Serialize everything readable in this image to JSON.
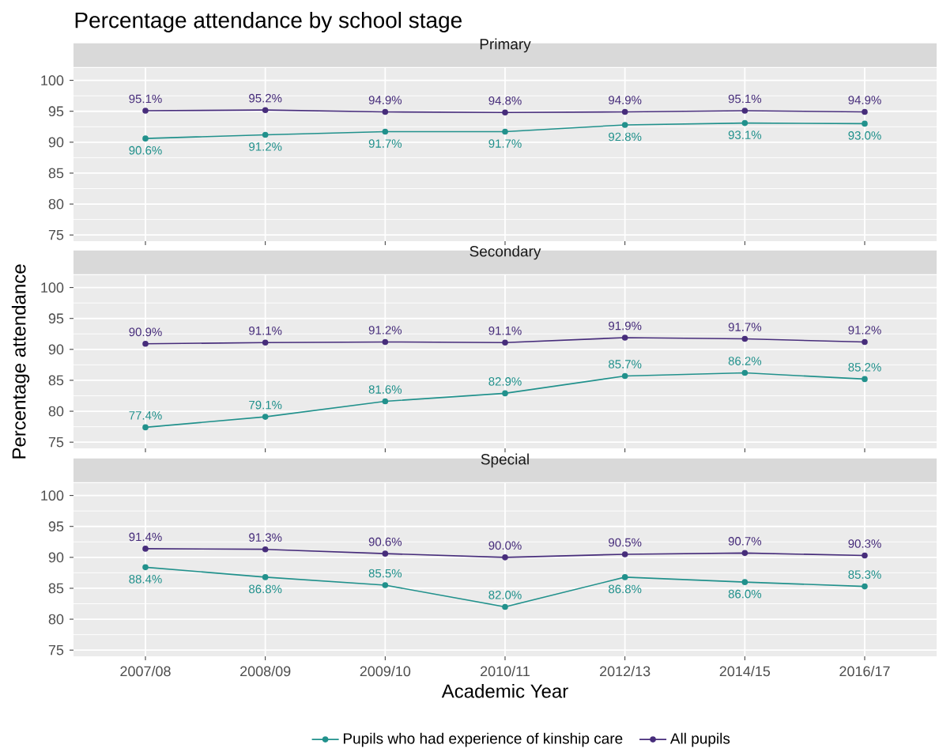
{
  "chart_data": [
    {
      "type": "line",
      "title": "Percentage attendance by school stage",
      "subtitle": "Primary",
      "categories": [
        "2007/08",
        "2008/09",
        "2009/10",
        "2010/11",
        "2012/13",
        "2014/15",
        "2016/17"
      ],
      "ylim": [
        74,
        102
      ],
      "yticks": [
        75,
        80,
        85,
        90,
        95,
        100
      ],
      "grid": true,
      "marker": "circle",
      "line_style": "solid",
      "tick_labels": "y",
      "series": [
        {
          "color": "#21918c",
          "values": [
            90.6,
            91.2,
            91.7,
            91.7,
            92.8,
            93.1,
            93.0
          ],
          "value_labels": [
            "90.6%",
            "91.2%",
            "91.7%",
            "91.7%",
            "92.8%",
            "93.1%",
            "93.0%"
          ]
        },
        {
          "color": "#472d7b",
          "values": [
            95.1,
            95.2,
            94.9,
            94.8,
            94.9,
            95.1,
            94.9
          ],
          "value_labels": [
            "95.1%",
            "95.2%",
            "94.9%",
            "94.8%",
            "94.9%",
            "95.1%",
            "94.9%"
          ]
        }
      ]
    },
    {
      "type": "line",
      "subtitle": "Secondary",
      "ylabel": "Percentage attendance",
      "categories": [
        "2007/08",
        "2008/09",
        "2009/10",
        "2010/11",
        "2012/13",
        "2014/15",
        "2016/17"
      ],
      "ylim": [
        74,
        102
      ],
      "yticks": [
        75,
        80,
        85,
        90,
        95,
        100
      ],
      "grid": true,
      "marker": "circle",
      "line_style": "solid",
      "tick_labels": "y",
      "series": [
        {
          "color": "#21918c",
          "values": [
            77.4,
            79.1,
            81.6,
            82.9,
            85.7,
            86.2,
            85.2
          ],
          "value_labels": [
            "77.4%",
            "79.1%",
            "81.6%",
            "82.9%",
            "85.7%",
            "86.2%",
            "85.2%"
          ]
        },
        {
          "color": "#472d7b",
          "values": [
            90.9,
            91.1,
            91.2,
            91.1,
            91.9,
            91.7,
            91.2
          ],
          "value_labels": [
            "90.9%",
            "91.1%",
            "91.2%",
            "91.1%",
            "91.9%",
            "91.7%",
            "91.2%"
          ]
        }
      ]
    },
    {
      "type": "line",
      "subtitle": "Special",
      "xlabel": "Academic Year",
      "categories": [
        "2007/08",
        "2008/09",
        "2009/10",
        "2010/11",
        "2012/13",
        "2014/15",
        "2016/17"
      ],
      "ylim": [
        74,
        102
      ],
      "yticks": [
        75,
        80,
        85,
        90,
        95,
        100
      ],
      "grid": true,
      "marker": "circle",
      "line_style": "solid",
      "legend": "bottom",
      "series": [
        {
          "name": "Pupils who had experience of kinship care",
          "color": "#21918c",
          "values": [
            88.4,
            86.8,
            85.5,
            82.0,
            86.8,
            86.0,
            85.3
          ],
          "value_labels": [
            "88.4%",
            "86.8%",
            "85.5%",
            "82.0%",
            "86.8%",
            "86.0%",
            "85.3%"
          ]
        },
        {
          "name": "All pupils",
          "color": "#472d7b",
          "values": [
            91.4,
            91.3,
            90.6,
            90.0,
            90.5,
            90.7,
            90.3
          ],
          "value_labels": [
            "91.4%",
            "91.3%",
            "90.6%",
            "90.0%",
            "90.5%",
            "90.7%",
            "90.3%"
          ]
        }
      ]
    }
  ]
}
